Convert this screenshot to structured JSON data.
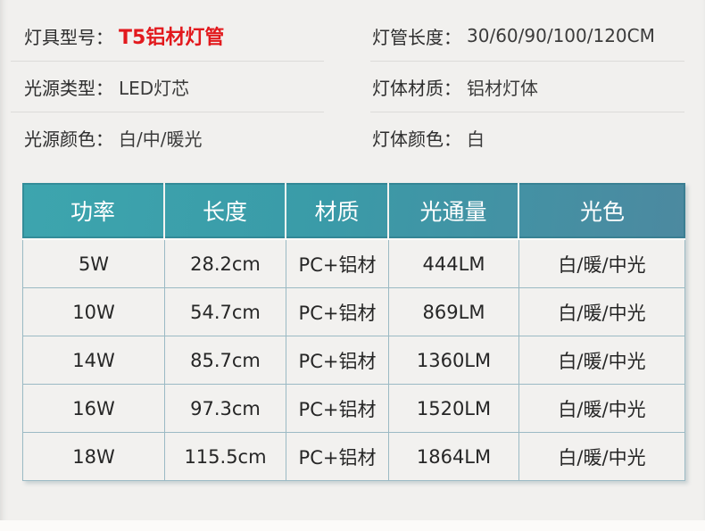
{
  "colors": {
    "page_bg": "#f1f0ee",
    "accent_red": "#e2191d",
    "header_teal_start": "#3da5ae",
    "header_teal_end": "#4c89a0",
    "table_border": "#9bbac4",
    "divider_gray": "#dcdbd9"
  },
  "specs": {
    "left": [
      {
        "label": "灯具型号：",
        "value": "T5铝材灯管"
      },
      {
        "label": "光源类型：",
        "value": "LED灯芯"
      },
      {
        "label": "光源颜色：",
        "value": "白/中/暖光"
      }
    ],
    "right": [
      {
        "label": "灯管长度：",
        "value": "30/60/90/100/120CM"
      },
      {
        "label": "灯体材质：",
        "value": "铝材灯体"
      },
      {
        "label": "灯体颜色：",
        "value": "白"
      }
    ]
  },
  "spec_table": {
    "headers": [
      "功率",
      "长度",
      "材质",
      "光通量",
      "光色"
    ],
    "rows": [
      [
        "5W",
        "28.2cm",
        "PC+铝材",
        "444LM",
        "白/暖/中光"
      ],
      [
        "10W",
        "54.7cm",
        "PC+铝材",
        "869LM",
        "白/暖/中光"
      ],
      [
        "14W",
        "85.7cm",
        "PC+铝材",
        "1360LM",
        "白/暖/中光"
      ],
      [
        "16W",
        "97.3cm",
        "PC+铝材",
        "1520LM",
        "白/暖/中光"
      ],
      [
        "18W",
        "115.5cm",
        "PC+铝材",
        "1864LM",
        "白/暖/中光"
      ]
    ]
  }
}
